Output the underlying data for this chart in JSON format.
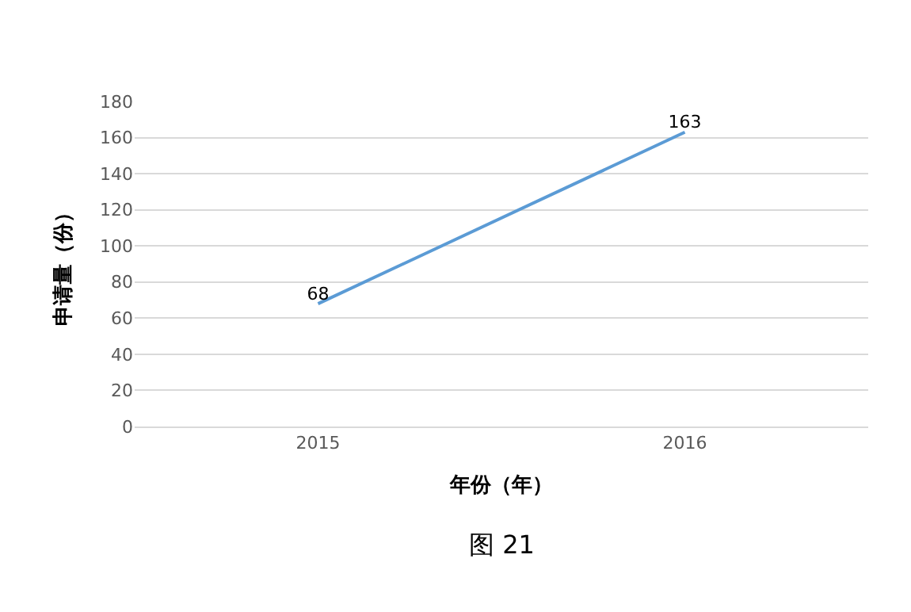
{
  "chart_data": {
    "type": "line",
    "xlabel": "年份（年）",
    "ylabel": "申请量（份）",
    "categories": [
      "2015",
      "2016"
    ],
    "series": [
      {
        "color": "#5b9bd5",
        "values": [
          68,
          163
        ]
      }
    ],
    "ylim": [
      0,
      180
    ],
    "yticks": [
      0,
      20,
      40,
      60,
      80,
      100,
      120,
      140,
      160,
      180
    ],
    "grid": "y",
    "data_labels": true,
    "legend": false,
    "marker": "none",
    "annotations": [
      "图 21"
    ]
  }
}
